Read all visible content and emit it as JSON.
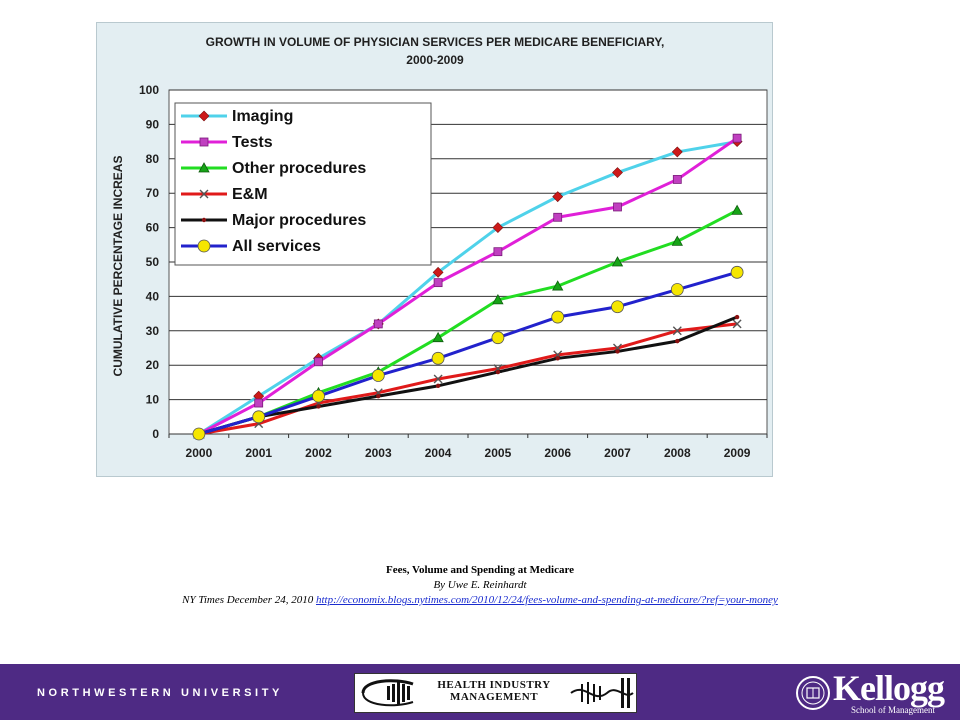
{
  "chart_data": {
    "type": "line",
    "title_line1": "GROWTH IN VOLUME OF PHYSICIAN SERVICES PER MEDICARE BENEFICIARY,",
    "title_line2": "2000-2009",
    "ylabel": "CUMULATIVE PERCENTAGE INCREAS",
    "xlabel": "",
    "x": [
      "2000",
      "2001",
      "2002",
      "2003",
      "2004",
      "2005",
      "2006",
      "2007",
      "2008",
      "2009"
    ],
    "ylim": [
      0,
      100
    ],
    "yticks": [
      0,
      10,
      20,
      30,
      40,
      50,
      60,
      70,
      80,
      90,
      100
    ],
    "grid": true,
    "legend_position": "top-left",
    "series": [
      {
        "name": "Imaging",
        "color": "#4fd2ea",
        "marker": "diamond",
        "marker_color": "#cc1a1a",
        "values": [
          0,
          11,
          22,
          32,
          47,
          60,
          69,
          76,
          82,
          85
        ]
      },
      {
        "name": "Tests",
        "color": "#e020d8",
        "marker": "square",
        "marker_color": "#c040c0",
        "values": [
          0,
          9,
          21,
          32,
          44,
          53,
          63,
          66,
          74,
          86
        ]
      },
      {
        "name": "Other procedures",
        "color": "#22dd22",
        "marker": "triangle",
        "marker_color": "#17a317",
        "values": [
          0,
          5,
          12,
          18,
          28,
          39,
          43,
          50,
          56,
          65
        ]
      },
      {
        "name": "E&M",
        "color": "#e01a1a",
        "marker": "x",
        "marker_color": "#555555",
        "values": [
          0,
          3,
          9,
          12,
          16,
          19,
          23,
          25,
          30,
          32
        ]
      },
      {
        "name": "Major procedures",
        "color": "#111111",
        "marker": "dot",
        "marker_color": "#8b1010",
        "values": [
          0,
          5,
          8,
          11,
          14,
          18,
          22,
          24,
          27,
          34
        ]
      },
      {
        "name": "All services",
        "color": "#2222cc",
        "marker": "circle",
        "marker_color": "#f5e600",
        "values": [
          0,
          5,
          11,
          17,
          22,
          28,
          34,
          37,
          42,
          47
        ]
      }
    ]
  },
  "citation": {
    "title": "Fees, Volume and Spending at Medicare",
    "author": "By Uwe E. Reinhardt",
    "source": "NY Times December 24, 2010 ",
    "url": "http://economix.blogs.nytimes.com/2010/12/24/fees-volume-and-spending-at-medicare/?ref=your-money"
  },
  "footer": {
    "university": "NORTHWESTERN UNIVERSITY",
    "hm_logo_text_1": "HEALTH INDUSTRY",
    "hm_logo_text_2": "MANAGEMENT",
    "kellogg_word": "Kellogg",
    "kellogg_sub": "School of Management",
    "bg_color": "#4e2a84"
  }
}
